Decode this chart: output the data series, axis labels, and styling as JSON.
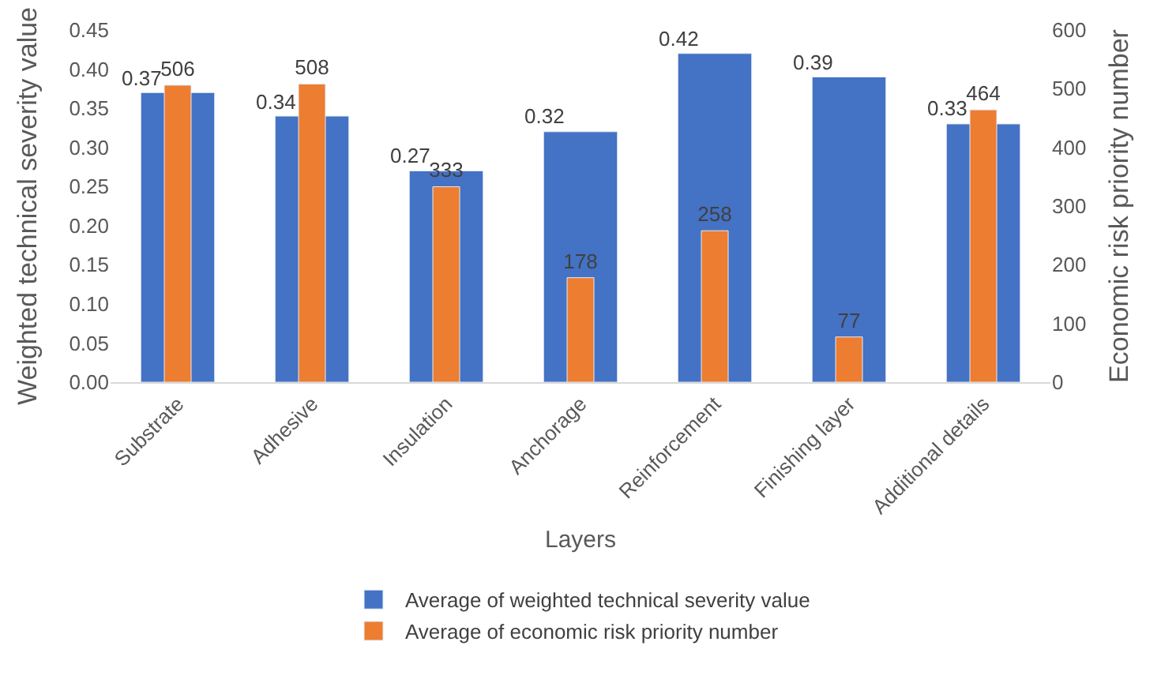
{
  "chart_data": {
    "type": "bar",
    "xlabel": "Layers",
    "ylabel": "Weighted technical severity value",
    "y2label": "Economic risk priority number",
    "categories": [
      "Substrate",
      "Adhesive",
      "Insulation",
      "Anchorage",
      "Reinforcement",
      "Finishing layer",
      "Additional details"
    ],
    "series": [
      {
        "name": "Average of weighted technical severity value",
        "color": "#4472c4",
        "values": [
          0.37,
          0.34,
          0.27,
          0.32,
          0.42,
          0.39,
          0.33
        ]
      },
      {
        "name": "Average of economic risk priority number",
        "color": "#ed7d31",
        "axis": "y2",
        "values": [
          506,
          508,
          333,
          178,
          258,
          77,
          464
        ]
      }
    ],
    "ylim": [
      0,
      0.45
    ],
    "yticks": [
      {
        "value": 0,
        "label": "0.00"
      },
      {
        "value": 0.05,
        "label": "0.05"
      },
      {
        "value": 0.1,
        "label": "0.10"
      },
      {
        "value": 0.15,
        "label": "0.15"
      },
      {
        "value": 0.2,
        "label": "0.20"
      },
      {
        "value": 0.25,
        "label": "0.25"
      },
      {
        "value": 0.3,
        "label": "0.30"
      },
      {
        "value": 0.35,
        "label": "0.35"
      },
      {
        "value": 0.4,
        "label": "0.40"
      },
      {
        "value": 0.45,
        "label": "0.45"
      }
    ],
    "y2lim": [
      0,
      600
    ],
    "y2ticks": [
      0,
      100,
      200,
      300,
      400,
      500,
      600
    ],
    "data_labels": true,
    "legend": "bottom"
  }
}
